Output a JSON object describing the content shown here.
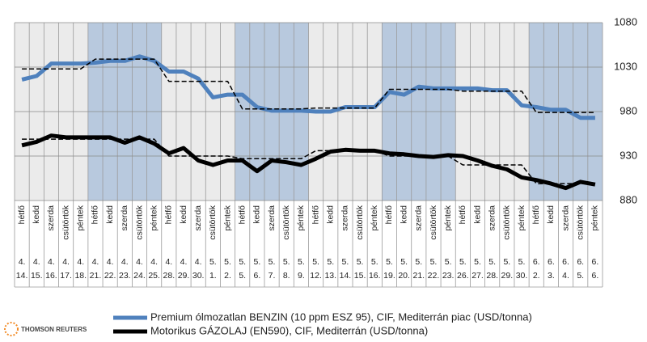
{
  "chart_data": {
    "type": "line",
    "categories": [
      "hétfő",
      "kedd",
      "szerda",
      "csütörtök",
      "péntek",
      "hétfő",
      "kedd",
      "szerda",
      "csütörtök",
      "péntek",
      "hétfő",
      "kedd",
      "szerda",
      "csütörtök",
      "péntek",
      "hétfő",
      "kedd",
      "szerda",
      "csütörtök",
      "péntek",
      "hétfő",
      "kedd",
      "szerda",
      "csütörtök",
      "péntek",
      "hétfő",
      "kedd",
      "szerda",
      "csütörtök",
      "péntek",
      "hétfő",
      "kedd",
      "szerda",
      "csütörtök",
      "péntek",
      "hétfő",
      "kedd",
      "szerda",
      "csütörtök",
      "péntek"
    ],
    "months": [
      "4.",
      "4.",
      "4.",
      "4.",
      "4.",
      "4.",
      "4.",
      "4.",
      "4.",
      "4.",
      "4.",
      "4.",
      "4.",
      "5.",
      "5.",
      "5.",
      "5.",
      "5.",
      "5.",
      "5.",
      "5.",
      "5.",
      "5.",
      "5.",
      "5.",
      "5.",
      "5.",
      "5.",
      "5.",
      "5.",
      "5.",
      "5.",
      "5.",
      "5.",
      "5.",
      "6.",
      "6.",
      "6.",
      "6.",
      "6."
    ],
    "days": [
      "14.",
      "15.",
      "16.",
      "17.",
      "18.",
      "21.",
      "22.",
      "23.",
      "24.",
      "25.",
      "28.",
      "29.",
      "30.",
      "1.",
      "2.",
      "5.",
      "6.",
      "7.",
      "8.",
      "9.",
      "12.",
      "13.",
      "14.",
      "15.",
      "16.",
      "19.",
      "20.",
      "21.",
      "22.",
      "23.",
      "26.",
      "27.",
      "28.",
      "29.",
      "30.",
      "2.",
      "3.",
      "4.",
      "5.",
      "6."
    ],
    "series": [
      {
        "name": "Premium ólmozatlan BENZIN (10 ppm ESZ 95), CIF, Mediterrán piac (USD/tonna)",
        "color": "#4f81bd",
        "values": [
          1016,
          1020,
          1034,
          1034,
          1034,
          1035,
          1037,
          1037,
          1042,
          1037,
          1025,
          1025,
          1017,
          996,
          999,
          999,
          985,
          981,
          981,
          981,
          980,
          980,
          985,
          985,
          985,
          1002,
          999,
          1008,
          1006,
          1006,
          1006,
          1006,
          1004,
          1004,
          987,
          985,
          982,
          982,
          973,
          973
        ]
      },
      {
        "color": "#000000",
        "dash": true,
        "values": [
          1028,
          1028,
          1028,
          1028,
          1028,
          1039,
          1039,
          1039,
          1039,
          1039,
          1014,
          1014,
          1014,
          1014,
          1014,
          983,
          983,
          983,
          983,
          983,
          984,
          984,
          984,
          984,
          984,
          1005,
          1005,
          1005,
          1005,
          1005,
          1003,
          1003,
          1003,
          1003,
          1003,
          979,
          979,
          979,
          979,
          979
        ]
      },
      {
        "name": "Motorikus GÁZOLAJ (EN590), CIF, Mediterrán (USD/tonna)",
        "color": "#000000",
        "values": [
          942,
          946,
          953,
          951,
          951,
          951,
          951,
          945,
          951,
          944,
          933,
          939,
          925,
          920,
          925,
          925,
          913,
          925,
          923,
          920,
          927,
          935,
          937,
          936,
          936,
          933,
          932,
          930,
          929,
          931,
          930,
          925,
          919,
          915,
          906,
          903,
          899,
          894,
          901,
          898
        ]
      },
      {
        "color": "#000000",
        "dash": true,
        "values": [
          949,
          949,
          949,
          949,
          949,
          949,
          949,
          949,
          949,
          949,
          930,
          930,
          930,
          930,
          930,
          927,
          927,
          927,
          927,
          927,
          936,
          936,
          936,
          936,
          936,
          930,
          930,
          930,
          930,
          930,
          920,
          920,
          920,
          920,
          920,
          899,
          899,
          899,
          899,
          899
        ]
      }
    ],
    "ylim": [
      880,
      1080
    ],
    "yticks": [
      880,
      930,
      980,
      1030,
      1080
    ],
    "grid": true,
    "logo_text": "THOMSON REUTERS"
  }
}
